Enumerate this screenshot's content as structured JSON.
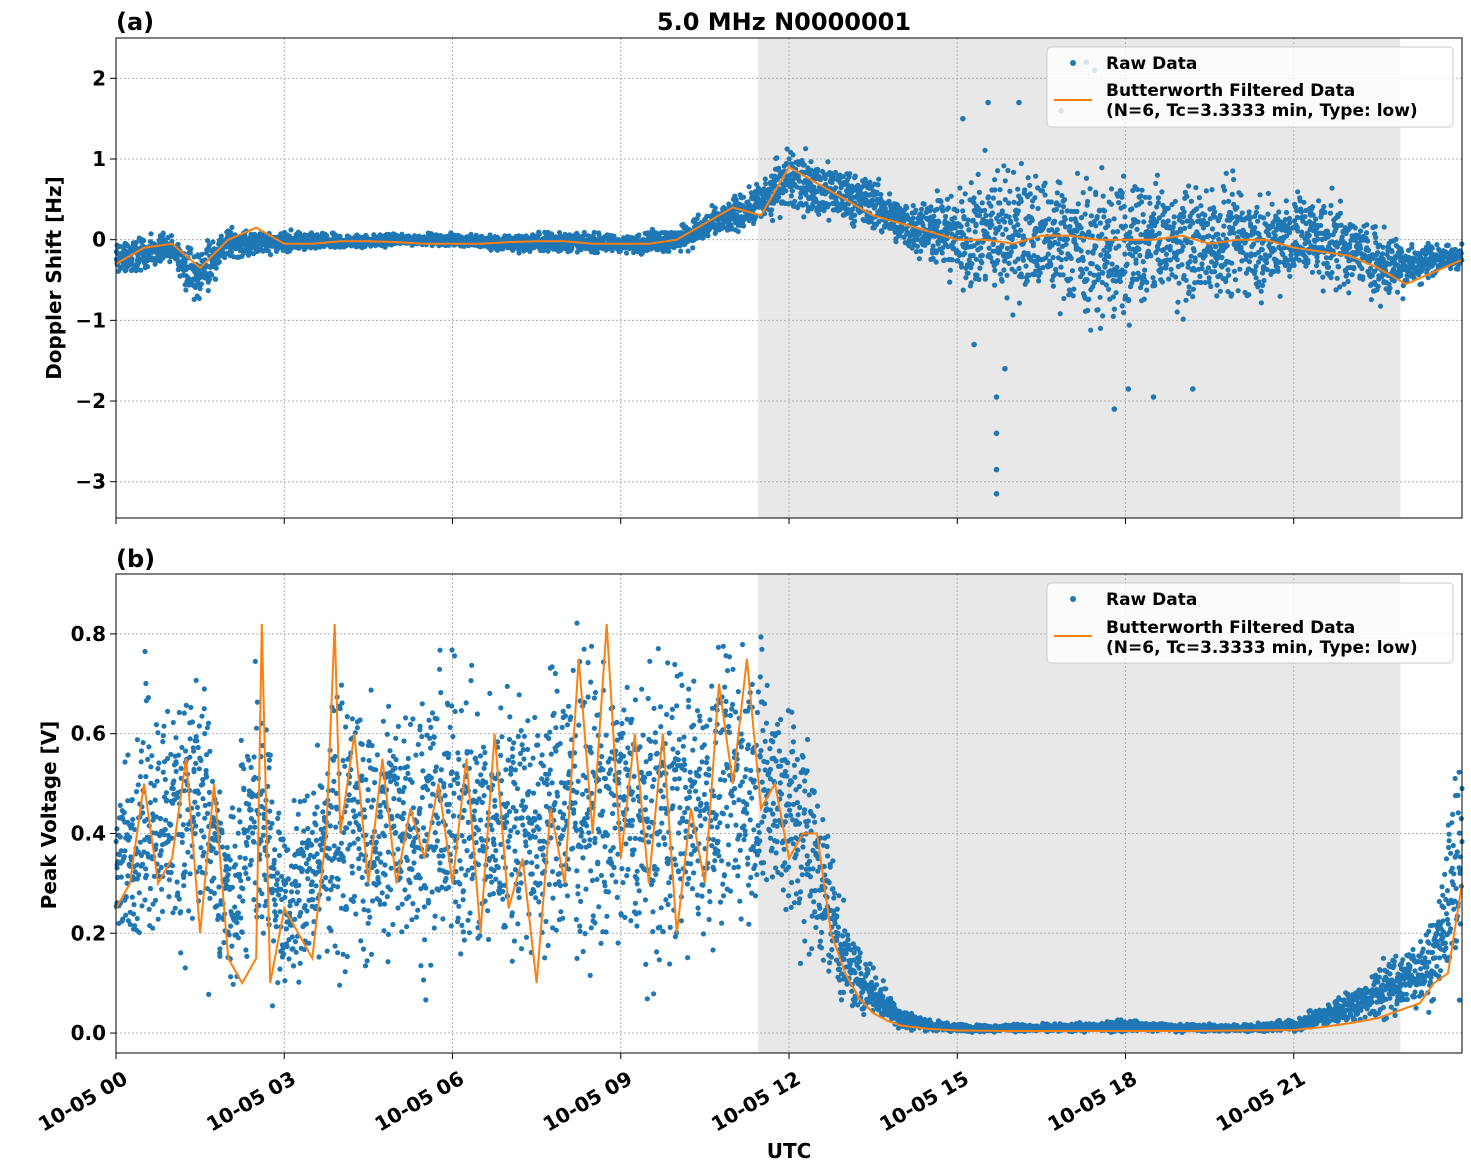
{
  "figure": {
    "title": "5.0 MHz N0000001",
    "xlabel": "UTC"
  },
  "colors": {
    "raw": "#1f77b4",
    "filtered": "#ff7f0e",
    "shade": "#e8e8e8",
    "grid": "#b0b0b0"
  },
  "legend": {
    "raw": "Raw Data",
    "filtered_line1": "Butterworth Filtered Data",
    "filtered_line2": "(N=6, Tc=3.3333 min, Type: low)"
  },
  "chart_data": [
    {
      "type": "scatter",
      "panel_label": "(a)",
      "ylabel": "Doppler Shift [Hz]",
      "xlim_hours": [
        0,
        24
      ],
      "ylim": [
        -3.45,
        2.5
      ],
      "yticks": [
        2,
        1,
        0,
        -1,
        -2,
        -3
      ],
      "ytick_labels": [
        "2",
        "1",
        "0",
        "−1",
        "−2",
        "−3"
      ],
      "grid": true,
      "legend_position": "top-right",
      "shaded_hours": [
        11.45,
        22.9
      ],
      "series": [
        {
          "name": "Raw Data",
          "style": "points",
          "envelope_hours": [
            0,
            1,
            1.4,
            2,
            3,
            4,
            5,
            6,
            7,
            8,
            9,
            10,
            10.5,
            11,
            11.5,
            12,
            12.5,
            13,
            13.5,
            14,
            14.5,
            15,
            15.5,
            16,
            16.5,
            17,
            17.5,
            18,
            18.5,
            19,
            19.5,
            20,
            20.5,
            21,
            21.5,
            22,
            22.5,
            23,
            23.5,
            24
          ],
          "envelope_high": [
            0.1,
            0.1,
            0.0,
            0.2,
            0.15,
            0.1,
            0.1,
            0.1,
            0.1,
            0.15,
            0.1,
            0.2,
            0.4,
            0.6,
            0.8,
            1.4,
            1.1,
            1.0,
            0.9,
            0.6,
            0.7,
            0.8,
            1.2,
            1.3,
            1.1,
            1.2,
            1.0,
            1.1,
            1.0,
            1.0,
            0.9,
            1.0,
            0.8,
            0.9,
            0.7,
            0.6,
            0.3,
            0.2,
            0.0,
            0.0
          ],
          "envelope_low": [
            -0.6,
            -0.3,
            -0.95,
            -0.3,
            -0.2,
            -0.15,
            -0.1,
            -0.1,
            -0.2,
            -0.2,
            -0.2,
            -0.2,
            -0.1,
            0.0,
            0.1,
            0.2,
            0.1,
            0.1,
            0.0,
            -0.2,
            -0.4,
            -0.8,
            -1.0,
            -1.1,
            -1.0,
            -1.2,
            -1.3,
            -1.4,
            -1.0,
            -1.1,
            -1.0,
            -1.0,
            -0.9,
            -0.8,
            -0.7,
            -0.8,
            -0.9,
            -0.8,
            -0.5,
            -0.4
          ]
        },
        {
          "name": "Butterworth Filtered Data",
          "style": "line",
          "x_hours": [
            0,
            0.5,
            1,
            1.5,
            2,
            2.5,
            3,
            3.5,
            4,
            4.5,
            5,
            5.5,
            6,
            6.5,
            7,
            7.5,
            8,
            8.5,
            9,
            9.5,
            10,
            10.5,
            11,
            11.5,
            12,
            12.5,
            13,
            13.5,
            14,
            14.5,
            15,
            15.5,
            16,
            16.5,
            17,
            17.5,
            18,
            18.5,
            19,
            19.5,
            20,
            20.5,
            21,
            21.5,
            22,
            22.5,
            23,
            23.5,
            24
          ],
          "y": [
            -0.3,
            -0.1,
            -0.05,
            -0.35,
            0.0,
            0.15,
            -0.05,
            -0.05,
            -0.02,
            -0.02,
            -0.03,
            -0.05,
            -0.05,
            -0.05,
            -0.03,
            -0.02,
            -0.02,
            -0.05,
            -0.05,
            -0.05,
            0.0,
            0.2,
            0.4,
            0.3,
            0.9,
            0.7,
            0.5,
            0.3,
            0.2,
            0.1,
            0.0,
            0.0,
            -0.05,
            0.05,
            0.05,
            0.0,
            0.0,
            0.0,
            0.05,
            -0.05,
            0.0,
            0.0,
            -0.1,
            -0.15,
            -0.2,
            -0.35,
            -0.55,
            -0.4,
            -0.25
          ]
        }
      ],
      "outliers": [
        [
          15.7,
          -3.15
        ],
        [
          15.7,
          -2.85
        ],
        [
          15.7,
          -2.4
        ],
        [
          15.7,
          -1.95
        ],
        [
          15.85,
          -1.6
        ],
        [
          15.3,
          -1.3
        ],
        [
          17.8,
          -2.1
        ],
        [
          18.05,
          -1.85
        ],
        [
          18.5,
          -1.95
        ],
        [
          19.2,
          -1.85
        ],
        [
          15.1,
          1.5
        ],
        [
          15.55,
          1.7
        ],
        [
          16.1,
          1.7
        ],
        [
          17.3,
          2.2
        ],
        [
          17.45,
          2.1
        ],
        [
          16.85,
          1.6
        ]
      ]
    },
    {
      "type": "scatter",
      "panel_label": "(b)",
      "ylabel": "Peak Voltage [V]",
      "xlim_hours": [
        0,
        24
      ],
      "ylim": [
        -0.04,
        0.92
      ],
      "yticks": [
        0.0,
        0.2,
        0.4,
        0.6,
        0.8
      ],
      "ytick_labels": [
        "0.0",
        "0.2",
        "0.4",
        "0.6",
        "0.8"
      ],
      "grid": true,
      "legend_position": "top-right",
      "shaded_hours": [
        11.45,
        22.9
      ],
      "xticks_hours": [
        0,
        3,
        6,
        9,
        12,
        15,
        18,
        21
      ],
      "xtick_labels": [
        "10-05 00",
        "10-05 03",
        "10-05 06",
        "10-05 09",
        "10-05 12",
        "10-05 15",
        "10-05 18",
        "10-05 21"
      ],
      "series": [
        {
          "name": "Raw Data",
          "style": "points",
          "envelope_hours": [
            0,
            0.5,
            1,
            1.5,
            2,
            2.5,
            3,
            3.5,
            4,
            4.5,
            5,
            5.5,
            6,
            6.5,
            7,
            7.5,
            8,
            8.5,
            9,
            9.5,
            10,
            10.5,
            11,
            11.5,
            12,
            12.5,
            13,
            13.5,
            14,
            14.5,
            15,
            16,
            17,
            18,
            19,
            20,
            21,
            21.5,
            22,
            22.5,
            23,
            23.5,
            24
          ],
          "envelope_high": [
            0.5,
            0.8,
            0.8,
            0.85,
            0.45,
            0.85,
            0.5,
            0.6,
            0.84,
            0.75,
            0.8,
            0.8,
            0.85,
            0.75,
            0.8,
            0.75,
            0.88,
            0.87,
            0.86,
            0.8,
            0.85,
            0.8,
            0.87,
            0.88,
            0.8,
            0.65,
            0.25,
            0.15,
            0.06,
            0.03,
            0.02,
            0.02,
            0.02,
            0.03,
            0.02,
            0.02,
            0.03,
            0.06,
            0.1,
            0.15,
            0.2,
            0.25,
            0.68
          ],
          "envelope_low": [
            0.1,
            0.1,
            0.07,
            0.05,
            0.05,
            0.03,
            0.02,
            0.03,
            0.04,
            0.04,
            0.05,
            0.04,
            0.05,
            0.05,
            0.05,
            0.06,
            0.05,
            0.05,
            0.05,
            0.05,
            0.05,
            0.1,
            0.15,
            0.15,
            0.08,
            0.05,
            0.02,
            0.01,
            0.0,
            0.0,
            0.0,
            0.0,
            0.0,
            0.0,
            0.0,
            0.0,
            0.0,
            0.005,
            0.01,
            0.01,
            0.02,
            0.03,
            0.05
          ]
        },
        {
          "name": "Butterworth Filtered Data",
          "style": "line",
          "x_hours": [
            0,
            0.25,
            0.5,
            0.75,
            1,
            1.25,
            1.5,
            1.75,
            2,
            2.25,
            2.5,
            2.6,
            2.75,
            3,
            3.25,
            3.5,
            3.75,
            3.9,
            4,
            4.25,
            4.5,
            4.75,
            5,
            5.25,
            5.5,
            5.75,
            6,
            6.25,
            6.5,
            6.75,
            7,
            7.25,
            7.5,
            7.75,
            8,
            8.25,
            8.5,
            8.75,
            9,
            9.25,
            9.5,
            9.75,
            10,
            10.25,
            10.5,
            10.75,
            11,
            11.25,
            11.5,
            11.75,
            12,
            12.25,
            12.5,
            12.75,
            13,
            13.25,
            13.5,
            13.75,
            14,
            14.5,
            15,
            16,
            17,
            18,
            19,
            20,
            21,
            21.5,
            22,
            22.5,
            23,
            23.25,
            23.5,
            23.75,
            24
          ],
          "y": [
            0.25,
            0.3,
            0.5,
            0.3,
            0.35,
            0.55,
            0.2,
            0.5,
            0.15,
            0.1,
            0.15,
            0.82,
            0.1,
            0.25,
            0.2,
            0.15,
            0.4,
            0.82,
            0.4,
            0.6,
            0.3,
            0.55,
            0.3,
            0.45,
            0.35,
            0.5,
            0.3,
            0.55,
            0.2,
            0.6,
            0.25,
            0.35,
            0.1,
            0.45,
            0.3,
            0.75,
            0.4,
            0.82,
            0.35,
            0.6,
            0.3,
            0.6,
            0.2,
            0.45,
            0.3,
            0.7,
            0.5,
            0.75,
            0.45,
            0.5,
            0.35,
            0.4,
            0.4,
            0.2,
            0.12,
            0.07,
            0.04,
            0.025,
            0.015,
            0.008,
            0.005,
            0.004,
            0.004,
            0.004,
            0.004,
            0.005,
            0.006,
            0.012,
            0.02,
            0.03,
            0.05,
            0.06,
            0.1,
            0.12,
            0.3
          ]
        }
      ]
    }
  ]
}
